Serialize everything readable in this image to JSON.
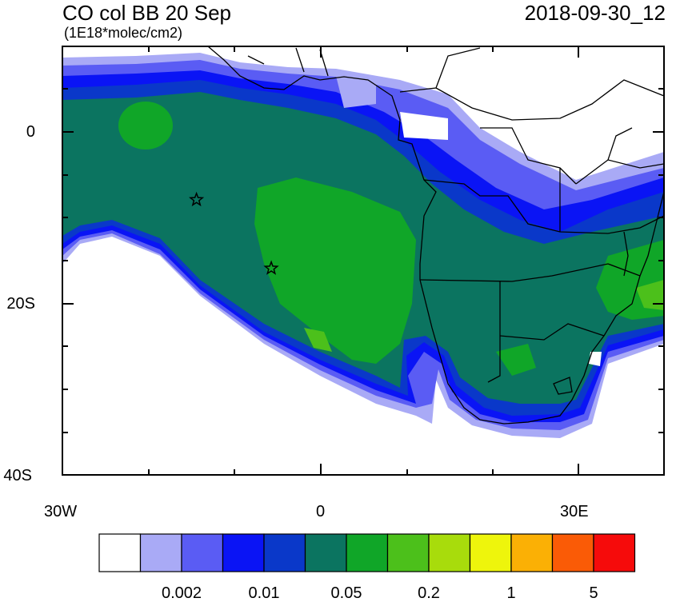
{
  "header": {
    "title": "CO col BB 20 Sep",
    "units": "(1E18*molec/cm2)",
    "timestamp": "2018-09-30_12"
  },
  "axes": {
    "lat_labels": [
      "0",
      "20S",
      "40S"
    ],
    "lon_labels": [
      "30W",
      "0",
      "30E"
    ]
  },
  "map": {
    "extent": {
      "lon_min": -30,
      "lon_max": 40,
      "lat_min": -40,
      "lat_max": 10
    },
    "markers": [
      {
        "type": "star",
        "lon": -14.4,
        "lat": -7.9
      },
      {
        "type": "star",
        "lon": -5.7,
        "lat": -15.9
      }
    ]
  },
  "colorbar": {
    "colors": [
      "#ffffff",
      "#a9aaf6",
      "#5a5cf4",
      "#0a14f5",
      "#0a38c9",
      "#0b7460",
      "#10a628",
      "#4cc01b",
      "#a8dc0c",
      "#eef50c",
      "#fbb005",
      "#fa5b06",
      "#f60b0b"
    ],
    "tick_labels": [
      "0.002",
      "0.01",
      "0.05",
      "0.2",
      "1",
      "5"
    ]
  }
}
